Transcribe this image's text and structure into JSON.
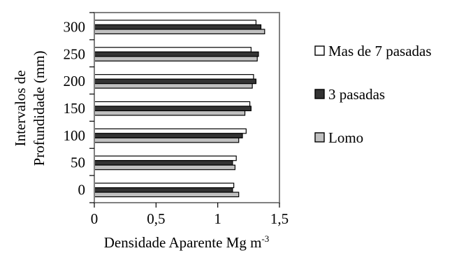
{
  "chart_data": {
    "type": "bar",
    "orientation": "horizontal",
    "title": "",
    "xlabel": "Densidade Aparente Mg m",
    "xlabel_superscript": "-3",
    "ylabel_lines": [
      "Intervalos de",
      "Profundidade (mm)"
    ],
    "categories": [
      "0",
      "50",
      "100",
      "150",
      "200",
      "250",
      "300"
    ],
    "xlim": [
      0,
      1.5
    ],
    "xticks": [
      0,
      0.5,
      1,
      1.5
    ],
    "xtick_labels": [
      "0",
      "0,5",
      "1",
      "1,5"
    ],
    "grid": false,
    "legend_position": "right",
    "series": [
      {
        "name": "Mas de 7 pasadas",
        "color": "#ffffff",
        "values": [
          1.13,
          1.15,
          1.23,
          1.26,
          1.29,
          1.27,
          1.31
        ]
      },
      {
        "name": "3 pasadas",
        "color": "#333333",
        "values": [
          1.12,
          1.12,
          1.2,
          1.27,
          1.31,
          1.33,
          1.35
        ]
      },
      {
        "name": "Lomo",
        "color": "#c0c0c0",
        "values": [
          1.17,
          1.14,
          1.17,
          1.22,
          1.28,
          1.32,
          1.38
        ]
      }
    ]
  }
}
